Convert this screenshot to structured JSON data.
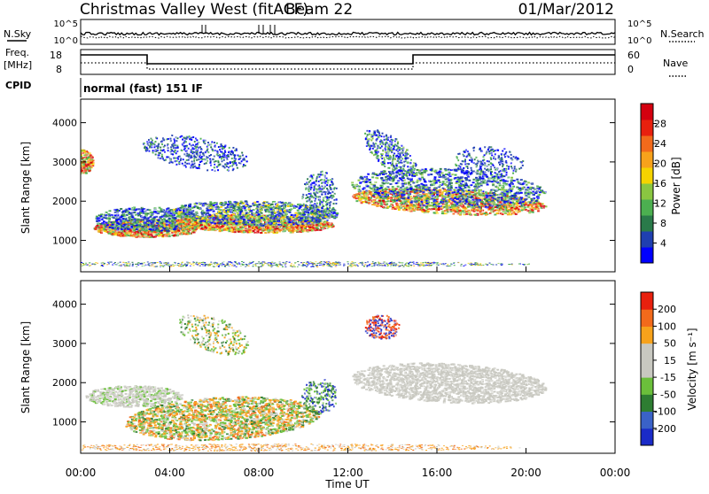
{
  "header": {
    "title": "Christmas Valley West (fitACF)",
    "beam": "Beam 22",
    "date": "01/Mar/2012"
  },
  "panels": {
    "nsky_label": "N.Sky",
    "nsky_ticks": [
      "10^5",
      "10^0"
    ],
    "nsearch_label": "N.Search",
    "nsearch_ticks": [
      "10^5",
      "10^0"
    ],
    "freq_label": "Freq.",
    "freq_unit": "[MHz]",
    "freq_ticks": [
      "18",
      "8"
    ],
    "nave_label": "Nave",
    "nave_ticks": [
      "60",
      "0"
    ],
    "cpid_label": "CPID",
    "cpid_value": "normal (fast) 151 IF"
  },
  "colors": {
    "power": [
      "#0000ff",
      "#1f3fb0",
      "#2a7a4a",
      "#4caf50",
      "#8ac641",
      "#f5d300",
      "#f7a21b",
      "#f26a1b",
      "#e8200e",
      "#d4000f"
    ],
    "velocity": [
      "#1a2bc8",
      "#3a62c8",
      "#2e7d32",
      "#6bbf3b",
      "#c8c8c0",
      "#c8c8c0",
      "#f7a21b",
      "#f26a1b",
      "#e8200e"
    ]
  },
  "chart_data": [
    {
      "type": "heatmap",
      "ylabel": "Slant Range [km]",
      "yticks": [
        "4000",
        "3000",
        "2000",
        "1000"
      ],
      "ylim": [
        200,
        4600
      ],
      "colorbar_label": "Power [dB]",
      "colorbar_ticks": [
        "28",
        "24",
        "20",
        "16",
        "12",
        "8",
        "4"
      ],
      "colorbar_range": [
        0,
        32
      ]
    },
    {
      "type": "heatmap",
      "ylabel": "Slant Range [km]",
      "yticks": [
        "4000",
        "3000",
        "2000",
        "1000"
      ],
      "ylim": [
        200,
        4600
      ],
      "colorbar_label": "Velocity [m s⁻¹]",
      "colorbar_ticks": [
        "200",
        "100",
        "50",
        "15",
        "-15",
        "-50",
        "-100",
        "-200"
      ],
      "xlabel": "Time UT",
      "xticks": [
        "00:00",
        "04:00",
        "08:00",
        "12:00",
        "16:00",
        "20:00",
        "00:00"
      ]
    }
  ]
}
